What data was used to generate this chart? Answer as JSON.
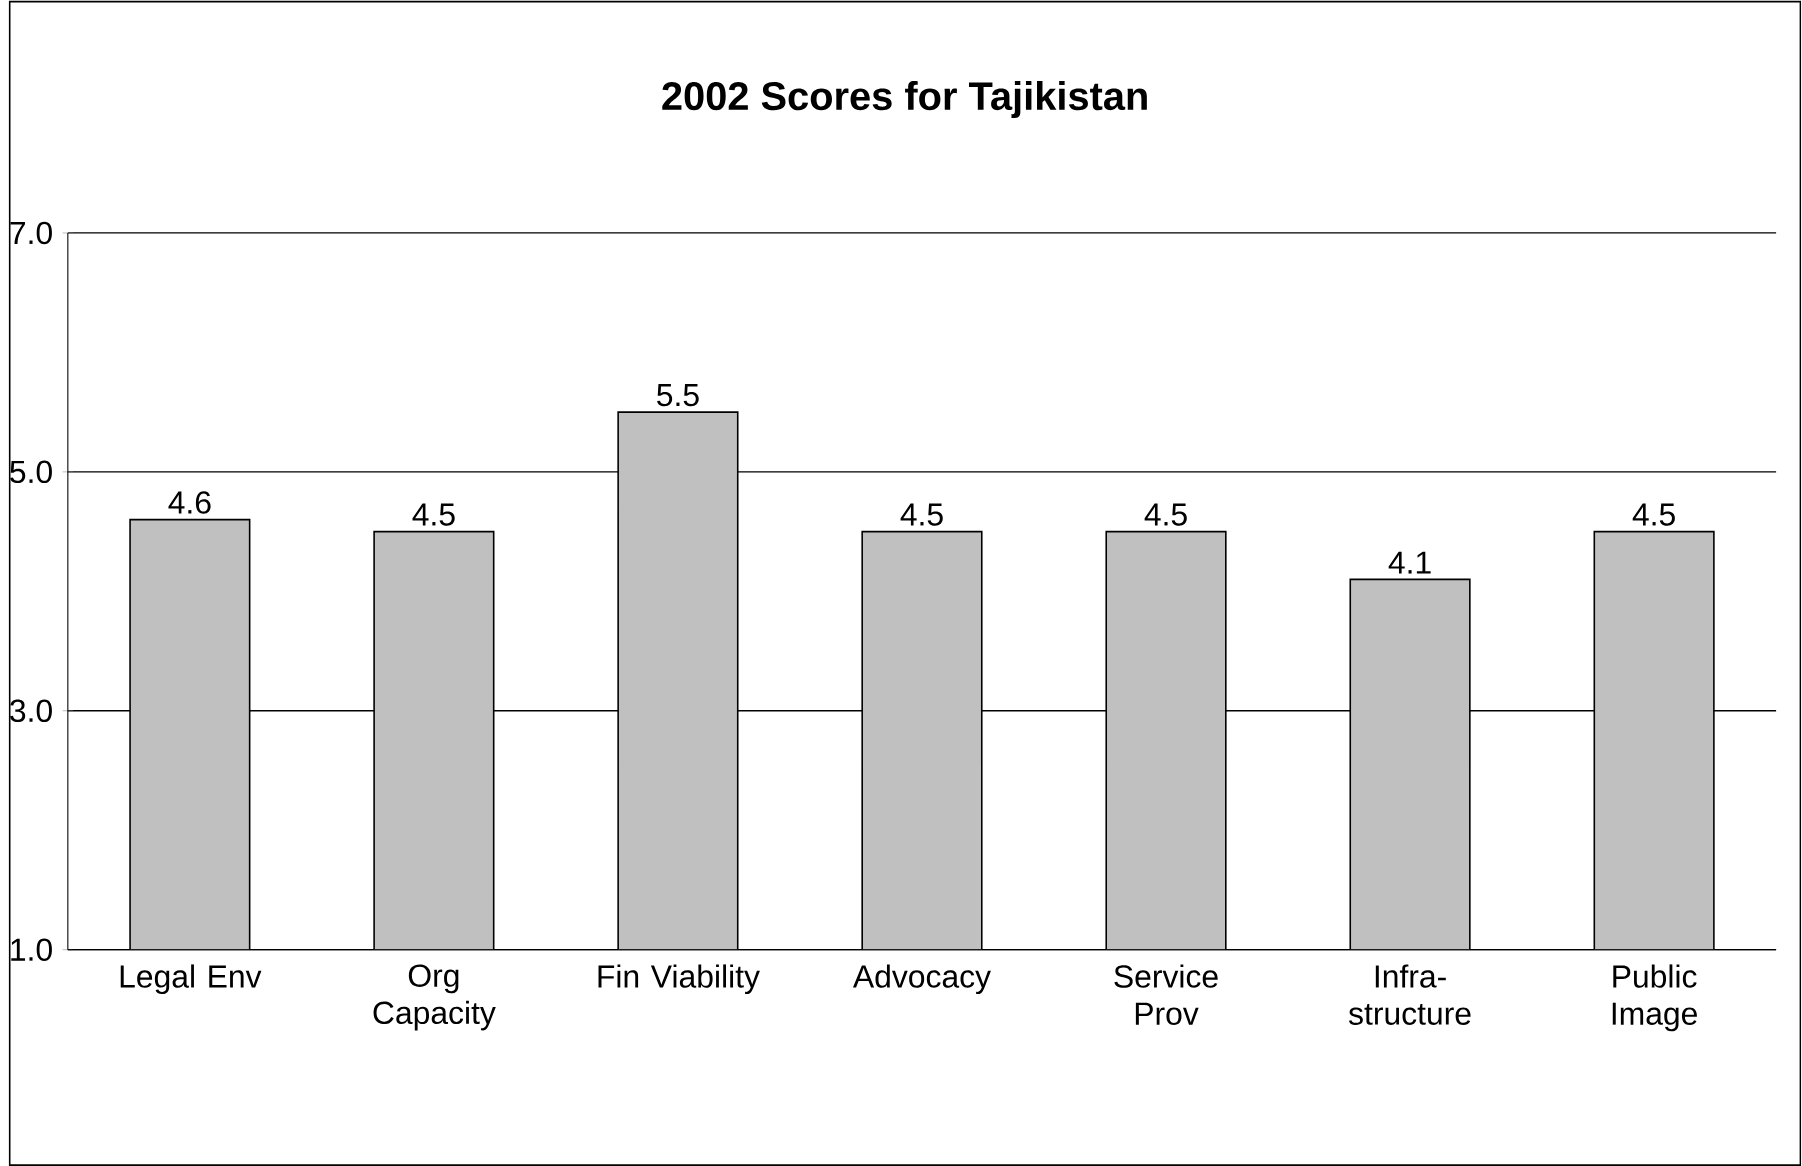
{
  "chart_data": {
    "type": "bar",
    "title": "2002 Scores for Tajikistan",
    "categories": [
      "Legal Env",
      "Org Capacity",
      "Fin Viability",
      "Advocacy",
      "Service Prov",
      "Infra-structure",
      "Public Image"
    ],
    "values": [
      4.6,
      4.5,
      5.5,
      4.5,
      4.5,
      4.1,
      4.5
    ],
    "color": "#c0c0c0",
    "ylim": [
      1,
      7
    ],
    "yticks": [
      {
        "value": 1,
        "label": "1.0"
      },
      {
        "value": 3,
        "label": "3.0"
      },
      {
        "value": 5,
        "label": "5.0"
      },
      {
        "value": 7,
        "label": "7.0"
      }
    ],
    "grid": "y",
    "data_labels": true
  }
}
